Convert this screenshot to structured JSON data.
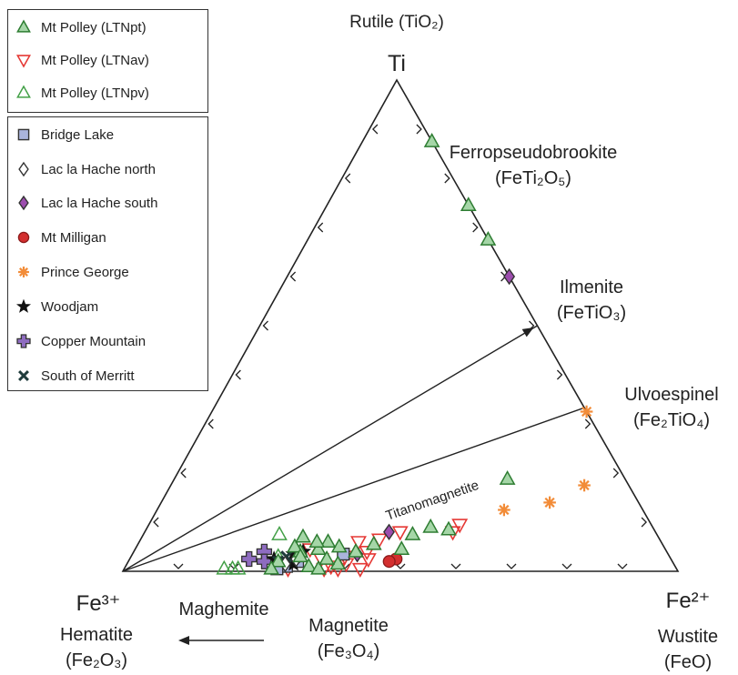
{
  "chart_data": {
    "type": "scatter",
    "subtype": "ternary",
    "vertices": {
      "top": {
        "symbol": "Ti",
        "mineral": "Rutile",
        "formula": "(TiO₂)"
      },
      "left": {
        "symbol": "Fe³⁺",
        "mineral": "Hematite",
        "formula": "(Fe₂O₃)"
      },
      "right": {
        "symbol": "Fe²⁺",
        "mineral": "Wustite",
        "formula": "(FeO)"
      }
    },
    "mineral_labels": [
      {
        "name": "Ferropseudobrookite",
        "formula": "(FeTi₂O₅)",
        "ti": 0.75,
        "fe2": 0.25
      },
      {
        "name": "Ilmenite",
        "formula": "(FeTiO₃)",
        "ti": 0.5,
        "fe2": 0.5
      },
      {
        "name": "Ulvoespinel",
        "formula": "(Fe₂TiO₄)",
        "ti": 0.333,
        "fe2": 0.667
      }
    ],
    "bottom_labels": {
      "maghemite": "Maghemite",
      "magnetite": "Magnetite",
      "magnetite_formula": "(Fe₃O₄)"
    },
    "trend_label": "Titanomagnetite",
    "legend_groups": [
      {
        "entries": [
          {
            "name": "Mt Polley (LTNpt)",
            "marker": "triangle-up",
            "color": "#2e7d32",
            "fill": "#a5d6a7"
          },
          {
            "name": "Mt Polley (LTNav)",
            "marker": "triangle-down",
            "color": "#e53935",
            "fill": "none"
          },
          {
            "name": "Mt Polley (LTNpv)",
            "marker": "triangle-up",
            "color": "#43a047",
            "fill": "none"
          }
        ]
      },
      {
        "entries": [
          {
            "name": "Bridge Lake",
            "marker": "square",
            "color": "#333333",
            "fill": "#aab4dc"
          },
          {
            "name": "Lac la Hache north",
            "marker": "diamond",
            "color": "#333333",
            "fill": "#ffffff"
          },
          {
            "name": "Lac la Hache south",
            "marker": "diamond",
            "color": "#333333",
            "fill": "#9c4dae"
          },
          {
            "name": "Mt Milligan",
            "marker": "circle",
            "color": "#8b1a1a",
            "fill": "#d32f2f"
          },
          {
            "name": "Prince George",
            "marker": "asterisk",
            "color": "#f28c38",
            "fill": "#f28c38"
          },
          {
            "name": "Woodjam",
            "marker": "star",
            "color": "#111111",
            "fill": "#111111"
          },
          {
            "name": "Copper Mountain",
            "marker": "cross",
            "color": "#333333",
            "fill": "#8e6cc0"
          },
          {
            "name": "South of Merritt",
            "marker": "x",
            "color": "#1f3b3b",
            "fill": "#1f3b3b"
          }
        ]
      }
    ],
    "series": [
      {
        "name": "Mt Polley (LTNpt)",
        "points": [
          {
            "ti": 0.875,
            "fe2": 0.125
          },
          {
            "ti": 0.745,
            "fe2": 0.255
          },
          {
            "ti": 0.675,
            "fe2": 0.325
          },
          {
            "ti": 0.188,
            "fe2": 0.6
          },
          {
            "ti": 0.085,
            "fe2": 0.545
          },
          {
            "ti": 0.09,
            "fe2": 0.51
          },
          {
            "ti": 0.075,
            "fe2": 0.485
          },
          {
            "ti": 0.045,
            "fe2": 0.48
          },
          {
            "ti": 0.055,
            "fe2": 0.425
          },
          {
            "ti": 0.04,
            "fe2": 0.4
          },
          {
            "ti": 0.05,
            "fe2": 0.365
          },
          {
            "ti": 0.06,
            "fe2": 0.34
          },
          {
            "ti": 0.045,
            "fe2": 0.33
          },
          {
            "ti": 0.04,
            "fe2": 0.3
          },
          {
            "ti": 0.05,
            "fe2": 0.285
          },
          {
            "ti": 0.03,
            "fe2": 0.305
          },
          {
            "ti": 0.01,
            "fe2": 0.33
          },
          {
            "ti": 0.005,
            "fe2": 0.35
          },
          {
            "ti": 0.02,
            "fe2": 0.27
          },
          {
            "ti": 0.06,
            "fe2": 0.32
          },
          {
            "ti": 0.07,
            "fe2": 0.29
          },
          {
            "ti": 0.015,
            "fe2": 0.38
          },
          {
            "ti": 0.005,
            "fe2": 0.265
          },
          {
            "ti": 0.025,
            "fe2": 0.355
          }
        ]
      },
      {
        "name": "Mt Polley (LTNav)",
        "points": [
          {
            "ti": 0.095,
            "fe2": 0.56
          },
          {
            "ti": 0.08,
            "fe2": 0.555
          },
          {
            "ti": 0.08,
            "fe2": 0.46
          },
          {
            "ti": 0.065,
            "fe2": 0.43
          },
          {
            "ti": 0.025,
            "fe2": 0.43
          },
          {
            "ti": 0.005,
            "fe2": 0.425
          },
          {
            "ti": 0.015,
            "fe2": 0.395
          },
          {
            "ti": 0.01,
            "fe2": 0.37
          },
          {
            "ti": 0.04,
            "fe2": 0.42
          },
          {
            "ti": 0.005,
            "fe2": 0.385
          },
          {
            "ti": 0.025,
            "fe2": 0.345
          },
          {
            "ti": 0.045,
            "fe2": 0.315
          },
          {
            "ti": 0.005,
            "fe2": 0.36
          },
          {
            "ti": 0.03,
            "fe2": 0.385
          },
          {
            "ti": 0.06,
            "fe2": 0.395
          },
          {
            "ti": 0.005,
            "fe2": 0.295
          }
        ]
      },
      {
        "name": "Mt Polley (LTNpv)",
        "points": [
          {
            "ti": 0.075,
            "fe2": 0.245
          },
          {
            "ti": 0.005,
            "fe2": 0.18
          },
          {
            "ti": 0.005,
            "fe2": 0.195
          },
          {
            "ti": 0.005,
            "fe2": 0.205
          },
          {
            "ti": 0.045,
            "fe2": 0.29
          },
          {
            "ti": 0.01,
            "fe2": 0.275
          },
          {
            "ti": 0.03,
            "fe2": 0.265
          }
        ]
      },
      {
        "name": "Bridge Lake",
        "points": [
          {
            "ti": 0.035,
            "fe2": 0.38
          },
          {
            "ti": 0.01,
            "fe2": 0.29
          },
          {
            "ti": 0.005,
            "fe2": 0.275
          },
          {
            "ti": 0.02,
            "fe2": 0.305
          }
        ]
      },
      {
        "name": "Lac la Hache north",
        "points": [
          {
            "ti": 0.015,
            "fe2": 0.285
          },
          {
            "ti": 0.025,
            "fe2": 0.3
          }
        ]
      },
      {
        "name": "Lac la Hache south",
        "points": [
          {
            "ti": 0.6,
            "fe2": 0.4
          },
          {
            "ti": 0.08,
            "fe2": 0.44
          },
          {
            "ti": 0.035,
            "fe2": 0.405
          }
        ]
      },
      {
        "name": "Mt Milligan",
        "points": [
          {
            "ti": 0.025,
            "fe2": 0.48
          },
          {
            "ti": 0.02,
            "fe2": 0.47
          }
        ]
      },
      {
        "name": "Prince George",
        "points": [
          {
            "ti": 0.325,
            "fe2": 0.675
          },
          {
            "ti": 0.175,
            "fe2": 0.745
          },
          {
            "ti": 0.14,
            "fe2": 0.7
          },
          {
            "ti": 0.125,
            "fe2": 0.625
          }
        ]
      },
      {
        "name": "Woodjam",
        "points": [
          {
            "ti": 0.025,
            "fe2": 0.26
          },
          {
            "ti": 0.035,
            "fe2": 0.29
          },
          {
            "ti": 0.015,
            "fe2": 0.3
          },
          {
            "ti": 0.04,
            "fe2": 0.305
          }
        ]
      },
      {
        "name": "Copper Mountain",
        "points": [
          {
            "ti": 0.025,
            "fe2": 0.215
          },
          {
            "ti": 0.04,
            "fe2": 0.235
          },
          {
            "ti": 0.02,
            "fe2": 0.245
          }
        ]
      },
      {
        "name": "South of Merritt",
        "points": [
          {
            "ti": 0.02,
            "fe2": 0.27
          },
          {
            "ti": 0.03,
            "fe2": 0.28
          }
        ]
      }
    ]
  }
}
